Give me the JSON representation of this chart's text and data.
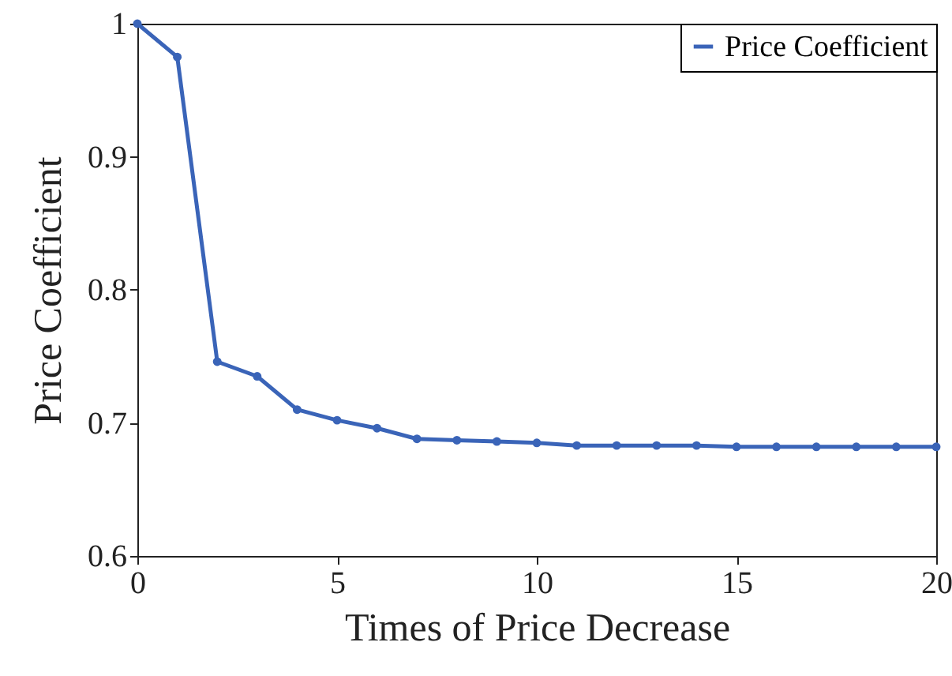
{
  "chart_data": {
    "type": "line",
    "xlabel": "Times of Price Decrease",
    "ylabel": "Price Coefficient",
    "x": [
      0,
      1,
      2,
      3,
      4,
      5,
      6,
      7,
      8,
      9,
      10,
      11,
      12,
      13,
      14,
      15,
      16,
      17,
      18,
      19,
      20
    ],
    "series": [
      {
        "name": "Price Coefficient",
        "color": "#3a64b8",
        "values": [
          1.0,
          0.975,
          0.746,
          0.735,
          0.71,
          0.702,
          0.696,
          0.688,
          0.687,
          0.686,
          0.685,
          0.683,
          0.683,
          0.683,
          0.683,
          0.682,
          0.682,
          0.682,
          0.682,
          0.682,
          0.682
        ]
      }
    ],
    "xlim": [
      0,
      20
    ],
    "xticks": [
      0,
      5,
      10,
      15,
      20
    ],
    "ylim": [
      0.6,
      1
    ],
    "yticks": [
      0.6,
      0.7,
      0.8,
      0.9,
      1
    ],
    "marker": "circle",
    "line_style": "solid",
    "legend": "top right",
    "grid": false
  }
}
